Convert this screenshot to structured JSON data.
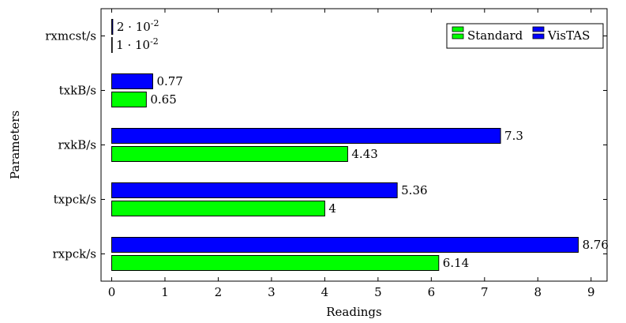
{
  "chart_data": {
    "type": "bar",
    "orientation": "horizontal",
    "categories": [
      "rxpck/s",
      "txpck/s",
      "rxkB/s",
      "txkB/s",
      "rxmcst/s"
    ],
    "series": [
      {
        "name": "Standard",
        "color": "#00ff00",
        "values": [
          6.14,
          4,
          4.43,
          0.65,
          0.01
        ],
        "labels": [
          "6.14",
          "4",
          "4.43",
          "0.65",
          "1 · 10^-2"
        ]
      },
      {
        "name": "VisTAS",
        "color": "#0000ff",
        "values": [
          8.76,
          5.36,
          7.3,
          0.77,
          0.02
        ],
        "labels": [
          "8.76",
          "5.36",
          "7.3",
          "0.77",
          "2 · 10^-2"
        ]
      }
    ],
    "xlabel": "Readings",
    "ylabel": "Parameters",
    "xlim": [
      -0.2,
      9.3
    ],
    "xticks": [
      0,
      1,
      2,
      3,
      4,
      5,
      6,
      7,
      8,
      9
    ],
    "grid": false,
    "legend_position": "top-right"
  }
}
